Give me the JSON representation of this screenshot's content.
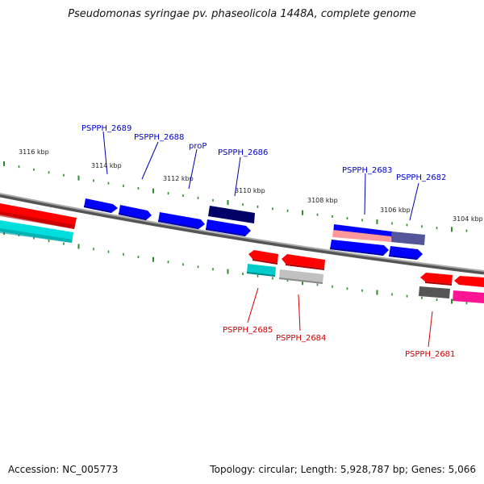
{
  "title": "Pseudomonas syringae pv. phaseolicola 1448A, complete genome",
  "footer": {
    "accession": "Accession: NC_005773",
    "summary": "Topology: circular; Length: 5,928,787 bp; Genes: 5,066"
  },
  "ruler": [
    {
      "label": "3116 kbp"
    },
    {
      "label": "3114 kbp"
    },
    {
      "label": "3112 kbp"
    },
    {
      "label": "3110 kbp"
    },
    {
      "label": "3108 kbp"
    },
    {
      "label": "3106 kbp"
    },
    {
      "label": "3104 kbp"
    }
  ],
  "genes": {
    "forward": [
      {
        "name": "PSPPH_2689",
        "color": "#0000cc"
      },
      {
        "name": "PSPPH_2688",
        "color": "#0000cc"
      },
      {
        "name": "proP",
        "color": "#0000cc"
      },
      {
        "name": "PSPPH_2686",
        "color": "#0000cc"
      },
      {
        "name": "PSPPH_2683",
        "color": "#0000cc"
      },
      {
        "name": "PSPPH_2682",
        "color": "#0000cc"
      }
    ],
    "reverse": [
      {
        "name": "PSPPH_2685",
        "color": "#cc0000"
      },
      {
        "name": "PSPPH_2684",
        "color": "#cc0000"
      },
      {
        "name": "PSPPH_2681",
        "color": "#cc0000"
      }
    ]
  },
  "colors": {
    "backbone": "#808080",
    "forward_cds": "#0000ff",
    "reverse_cds": "#ff0000",
    "tick": "#2e8b2e",
    "cyan_feature": "#00cccc",
    "navy_feature": "#000066",
    "gray_feature": "#b0b0b0",
    "magenta_feature": "#ff1493"
  }
}
